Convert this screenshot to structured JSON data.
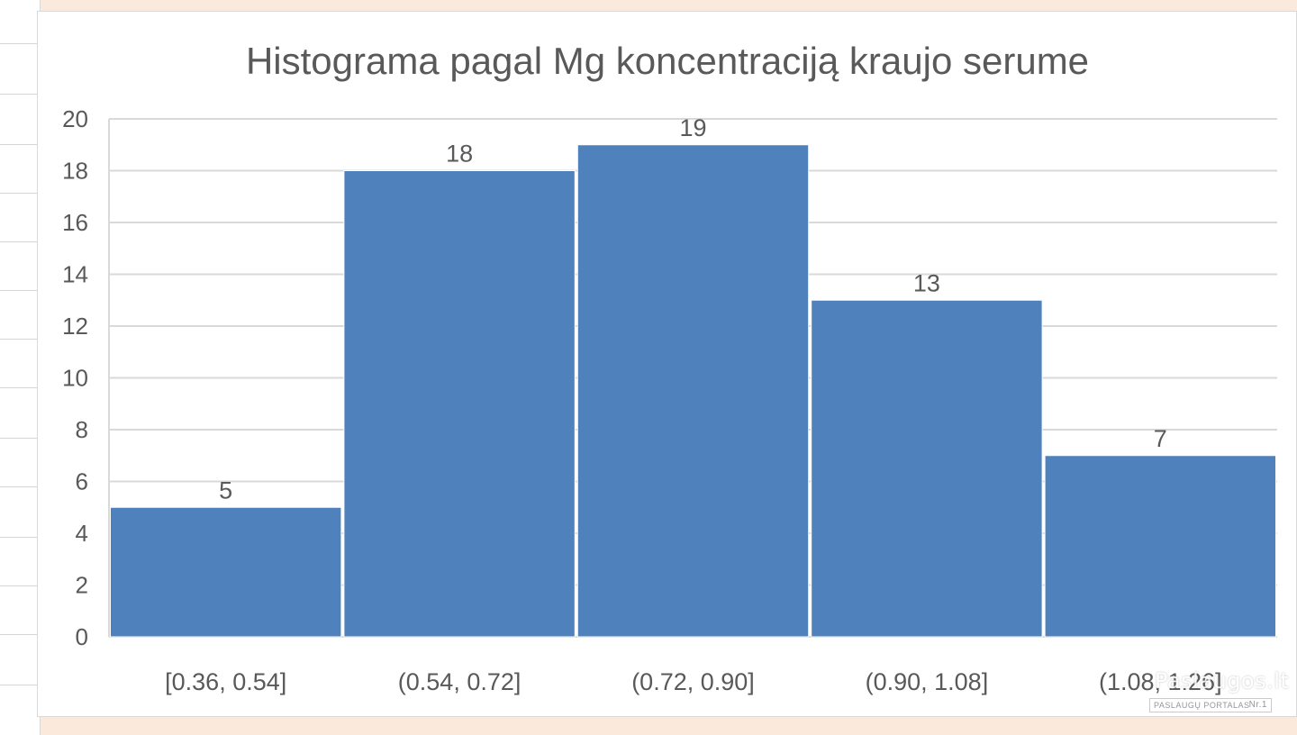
{
  "colors": {
    "bar": "#4f81bd",
    "grid": "#d9d9d9",
    "text": "#595959",
    "title": "#595959",
    "background_strip": "#fbe9dc"
  },
  "watermark": {
    "brand": "Paslaugos.lt",
    "subtitle": "PASLAUGŲ PORTALAS",
    "badge": "Nr.1"
  },
  "chart_data": {
    "type": "bar",
    "title": "Histograma pagal Mg koncentraciją kraujo serume",
    "xlabel": "",
    "ylabel": "",
    "categories": [
      "[0.36, 0.54]",
      "(0.54, 0.72]",
      "(0.72, 0.90]",
      "(0.90, 1.08]",
      "(1.08, 1.26]"
    ],
    "values": [
      5,
      18,
      19,
      13,
      7
    ],
    "data_labels": [
      "5",
      "18",
      "19",
      "13",
      "7"
    ],
    "ylim": [
      0,
      20
    ],
    "yticks": [
      0,
      2,
      4,
      6,
      8,
      10,
      12,
      14,
      16,
      18,
      20
    ],
    "grid": true,
    "legend": "none",
    "bar_gap": "none (histogram)"
  }
}
